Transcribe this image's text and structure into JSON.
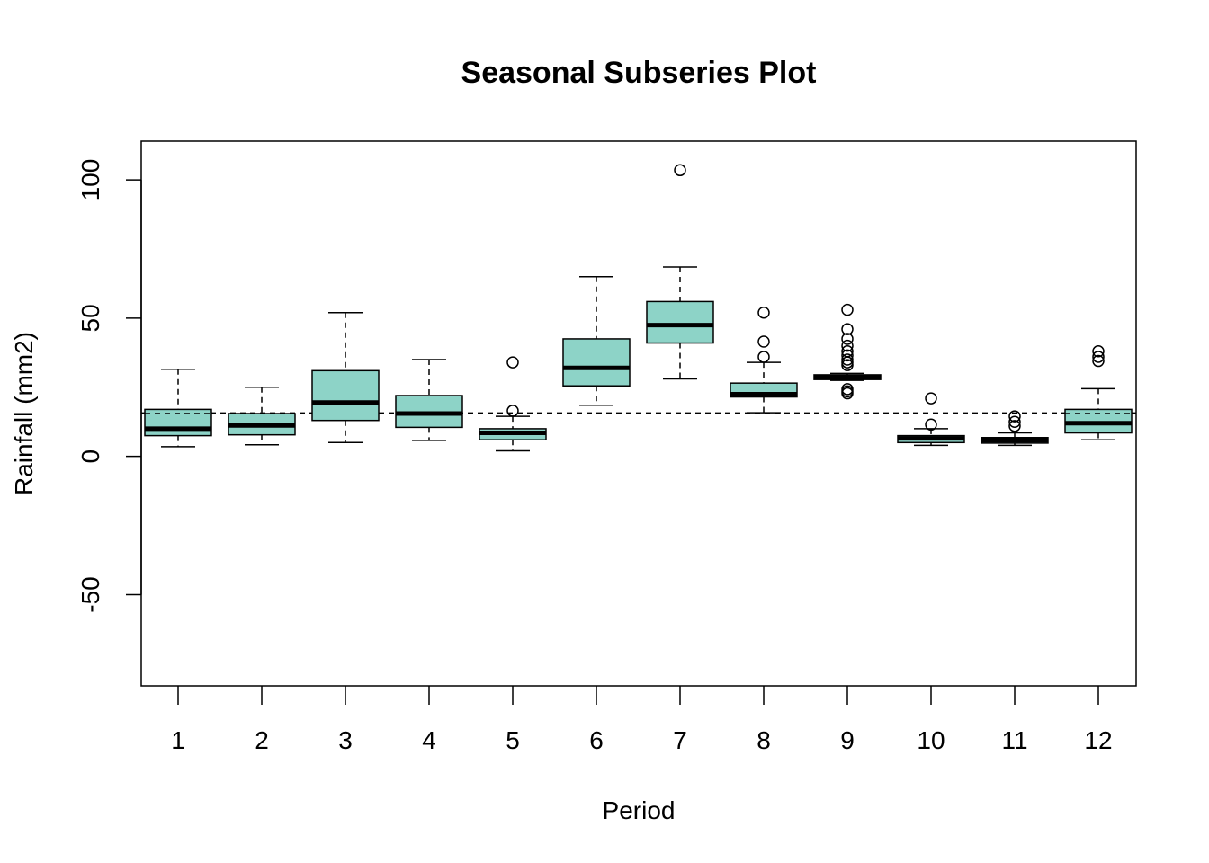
{
  "chart_data": {
    "type": "boxplot",
    "title": "Seasonal Subseries Plot",
    "xlabel": "Period",
    "ylabel": "Rainfall (mm2)",
    "ylim": [
      -83,
      114
    ],
    "yticks": [
      -50,
      0,
      50,
      100
    ],
    "ytick_labels": [
      "-50",
      "0",
      "50",
      "100"
    ],
    "categories": [
      "1",
      "2",
      "3",
      "4",
      "5",
      "6",
      "7",
      "8",
      "9",
      "10",
      "11",
      "12"
    ],
    "box_color": "#8dd3c7",
    "reference_line": 15.7,
    "grid": false,
    "boxes": [
      {
        "period": "1",
        "whisker_low": 3.5,
        "q1": 7.5,
        "median": 10.0,
        "q3": 17.0,
        "whisker_high": 31.5,
        "mean": 15.5,
        "outliers": []
      },
      {
        "period": "2",
        "whisker_low": 4.2,
        "q1": 7.8,
        "median": 11.2,
        "q3": 15.5,
        "whisker_high": 25.0,
        "outliers": []
      },
      {
        "period": "3",
        "whisker_low": 5.0,
        "q1": 13.0,
        "median": 19.5,
        "q3": 31.0,
        "whisker_high": 52.0,
        "outliers": []
      },
      {
        "period": "4",
        "whisker_low": 5.8,
        "q1": 10.5,
        "median": 15.5,
        "q3": 22.0,
        "whisker_high": 35.0,
        "outliers": []
      },
      {
        "period": "5",
        "whisker_low": 2.0,
        "q1": 6.0,
        "median": 8.5,
        "q3": 10.0,
        "whisker_high": 14.5,
        "outliers": [
          16.5,
          34.0
        ]
      },
      {
        "period": "6",
        "whisker_low": 18.5,
        "q1": 25.5,
        "median": 32.0,
        "q3": 42.5,
        "whisker_high": 65.0,
        "outliers": []
      },
      {
        "period": "7",
        "whisker_low": 28.0,
        "q1": 41.0,
        "median": 47.5,
        "q3": 56.0,
        "whisker_high": 68.5,
        "outliers": [
          103.5
        ]
      },
      {
        "period": "8",
        "whisker_low": 15.8,
        "q1": 21.5,
        "median": 22.5,
        "q3": 26.5,
        "whisker_high": 34.0,
        "outliers": [
          36.0,
          41.5,
          52.0
        ]
      },
      {
        "period": "9",
        "whisker_low": 27.5,
        "q1": 27.8,
        "median": 28.5,
        "q3": 29.5,
        "whisker_high": 30.0,
        "outliers": [
          22.8,
          23.5,
          24.3,
          33.0,
          34.0,
          35.0,
          36.5,
          38.0,
          40.0,
          42.5,
          46.0,
          53.0
        ]
      },
      {
        "period": "10",
        "whisker_low": 4.0,
        "q1": 5.0,
        "median": 6.5,
        "q3": 7.5,
        "whisker_high": 10.0,
        "outliers": [
          11.5,
          21.0
        ]
      },
      {
        "period": "11",
        "whisker_low": 4.0,
        "q1": 4.8,
        "median": 5.8,
        "q3": 6.8,
        "whisker_high": 8.5,
        "outliers": [
          11.0,
          12.5,
          14.5
        ]
      },
      {
        "period": "12",
        "whisker_low": 6.0,
        "q1": 8.5,
        "median": 12.0,
        "q3": 17.0,
        "whisker_high": 24.5,
        "mean": 15.5,
        "outliers": [
          34.5,
          36.0,
          38.0
        ]
      }
    ]
  }
}
